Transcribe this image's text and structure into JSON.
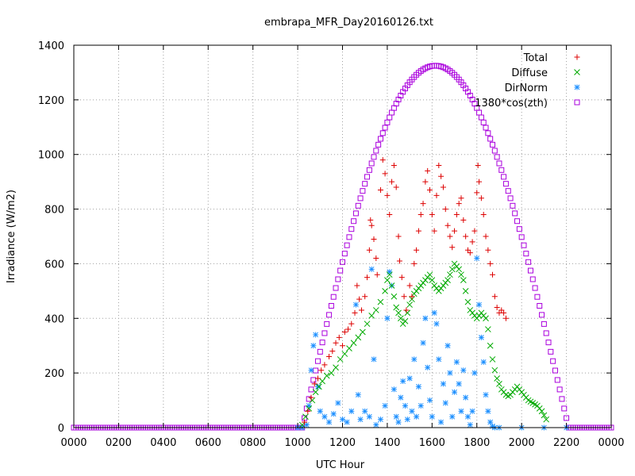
{
  "chart_data": {
    "type": "scatter",
    "title": "embrapa_MFR_Day20160126.txt",
    "xlabel": "UTC Hour",
    "ylabel": "Irradiance (W/m2)",
    "xlim": [
      0,
      24
    ],
    "ylim": [
      0,
      1400
    ],
    "x_ticks": [
      {
        "value": 0,
        "label": "0000"
      },
      {
        "value": 2,
        "label": "0200"
      },
      {
        "value": 4,
        "label": "0400"
      },
      {
        "value": 6,
        "label": "0600"
      },
      {
        "value": 8,
        "label": "0800"
      },
      {
        "value": 10,
        "label": "1000"
      },
      {
        "value": 12,
        "label": "1200"
      },
      {
        "value": 14,
        "label": "1400"
      },
      {
        "value": 16,
        "label": "1600"
      },
      {
        "value": 18,
        "label": "1800"
      },
      {
        "value": 20,
        "label": "2000"
      },
      {
        "value": 22,
        "label": "2200"
      },
      {
        "value": 24,
        "label": "0000"
      }
    ],
    "y_ticks": [
      {
        "value": 0,
        "label": "0"
      },
      {
        "value": 200,
        "label": "200"
      },
      {
        "value": 400,
        "label": "400"
      },
      {
        "value": 600,
        "label": "600"
      },
      {
        "value": 800,
        "label": "800"
      },
      {
        "value": 1000,
        "label": "1000"
      },
      {
        "value": 1200,
        "label": "1200"
      },
      {
        "value": 1400,
        "label": "1400"
      }
    ],
    "grid": true,
    "legend_position": "top-right",
    "series": [
      {
        "name": "Total",
        "marker": "plus",
        "color": "#dd0000",
        "points": [
          [
            10.3,
            20
          ],
          [
            10.45,
            60
          ],
          [
            10.6,
            110
          ],
          [
            10.75,
            160
          ],
          [
            10.9,
            180
          ],
          [
            11.05,
            210
          ],
          [
            11.2,
            230
          ],
          [
            11.4,
            260
          ],
          [
            11.55,
            280
          ],
          [
            11.7,
            310
          ],
          [
            11.85,
            330
          ],
          [
            12.0,
            300
          ],
          [
            12.1,
            350
          ],
          [
            12.25,
            360
          ],
          [
            12.4,
            380
          ],
          [
            12.55,
            420
          ],
          [
            12.65,
            520
          ],
          [
            12.75,
            470
          ],
          [
            12.85,
            430
          ],
          [
            13.0,
            480
          ],
          [
            13.1,
            550
          ],
          [
            13.2,
            650
          ],
          [
            13.25,
            760
          ],
          [
            13.3,
            740
          ],
          [
            13.4,
            690
          ],
          [
            13.5,
            620
          ],
          [
            13.55,
            560
          ],
          [
            13.7,
            870
          ],
          [
            13.8,
            980
          ],
          [
            13.9,
            930
          ],
          [
            14.0,
            850
          ],
          [
            14.1,
            780
          ],
          [
            14.2,
            900
          ],
          [
            14.3,
            960
          ],
          [
            14.4,
            880
          ],
          [
            14.5,
            700
          ],
          [
            14.55,
            610
          ],
          [
            14.65,
            550
          ],
          [
            14.75,
            480
          ],
          [
            14.85,
            430
          ],
          [
            15.0,
            520
          ],
          [
            15.1,
            480
          ],
          [
            15.2,
            600
          ],
          [
            15.3,
            650
          ],
          [
            15.4,
            720
          ],
          [
            15.5,
            780
          ],
          [
            15.6,
            820
          ],
          [
            15.7,
            900
          ],
          [
            15.8,
            940
          ],
          [
            15.9,
            870
          ],
          [
            16.0,
            780
          ],
          [
            16.1,
            720
          ],
          [
            16.2,
            850
          ],
          [
            16.3,
            960
          ],
          [
            16.4,
            920
          ],
          [
            16.5,
            880
          ],
          [
            16.6,
            800
          ],
          [
            16.7,
            740
          ],
          [
            16.8,
            700
          ],
          [
            16.9,
            660
          ],
          [
            17.0,
            720
          ],
          [
            17.1,
            780
          ],
          [
            17.2,
            820
          ],
          [
            17.3,
            840
          ],
          [
            17.4,
            760
          ],
          [
            17.5,
            700
          ],
          [
            17.6,
            650
          ],
          [
            17.7,
            640
          ],
          [
            17.8,
            680
          ],
          [
            17.9,
            720
          ],
          [
            18.0,
            860
          ],
          [
            18.05,
            960
          ],
          [
            18.1,
            900
          ],
          [
            18.2,
            840
          ],
          [
            18.3,
            780
          ],
          [
            18.4,
            700
          ],
          [
            18.5,
            650
          ],
          [
            18.6,
            600
          ],
          [
            18.7,
            560
          ],
          [
            18.8,
            480
          ],
          [
            18.9,
            440
          ],
          [
            19.0,
            420
          ],
          [
            19.1,
            430
          ],
          [
            19.2,
            420
          ],
          [
            19.3,
            400
          ]
        ]
      },
      {
        "name": "Diffuse",
        "marker": "cross",
        "color": "#00aa00",
        "points": [
          [
            10.2,
            10
          ],
          [
            10.35,
            40
          ],
          [
            10.5,
            70
          ],
          [
            10.65,
            100
          ],
          [
            10.8,
            130
          ],
          [
            10.95,
            150
          ],
          [
            11.1,
            170
          ],
          [
            11.3,
            190
          ],
          [
            11.5,
            200
          ],
          [
            11.7,
            220
          ],
          [
            11.9,
            250
          ],
          [
            12.1,
            270
          ],
          [
            12.3,
            290
          ],
          [
            12.5,
            310
          ],
          [
            12.7,
            330
          ],
          [
            12.9,
            350
          ],
          [
            13.1,
            380
          ],
          [
            13.3,
            410
          ],
          [
            13.5,
            430
          ],
          [
            13.7,
            460
          ],
          [
            13.9,
            500
          ],
          [
            14.0,
            540
          ],
          [
            14.1,
            560
          ],
          [
            14.2,
            520
          ],
          [
            14.3,
            480
          ],
          [
            14.4,
            440
          ],
          [
            14.5,
            420
          ],
          [
            14.6,
            400
          ],
          [
            14.7,
            380
          ],
          [
            14.8,
            390
          ],
          [
            14.9,
            420
          ],
          [
            15.0,
            450
          ],
          [
            15.1,
            470
          ],
          [
            15.2,
            490
          ],
          [
            15.3,
            500
          ],
          [
            15.4,
            510
          ],
          [
            15.5,
            520
          ],
          [
            15.6,
            530
          ],
          [
            15.7,
            540
          ],
          [
            15.8,
            550
          ],
          [
            15.9,
            560
          ],
          [
            16.0,
            540
          ],
          [
            16.1,
            520
          ],
          [
            16.2,
            510
          ],
          [
            16.3,
            500
          ],
          [
            16.4,
            510
          ],
          [
            16.5,
            520
          ],
          [
            16.6,
            530
          ],
          [
            16.7,
            540
          ],
          [
            16.8,
            560
          ],
          [
            16.9,
            580
          ],
          [
            17.0,
            600
          ],
          [
            17.1,
            590
          ],
          [
            17.2,
            580
          ],
          [
            17.3,
            560
          ],
          [
            17.4,
            540
          ],
          [
            17.5,
            500
          ],
          [
            17.6,
            460
          ],
          [
            17.7,
            430
          ],
          [
            17.8,
            420
          ],
          [
            17.9,
            410
          ],
          [
            18.0,
            400
          ],
          [
            18.1,
            410
          ],
          [
            18.2,
            420
          ],
          [
            18.3,
            410
          ],
          [
            18.4,
            400
          ],
          [
            18.5,
            360
          ],
          [
            18.6,
            300
          ],
          [
            18.7,
            250
          ],
          [
            18.8,
            210
          ],
          [
            18.9,
            180
          ],
          [
            19.0,
            160
          ],
          [
            19.1,
            140
          ],
          [
            19.2,
            130
          ],
          [
            19.3,
            120
          ],
          [
            19.4,
            115
          ],
          [
            19.5,
            120
          ],
          [
            19.6,
            130
          ],
          [
            19.7,
            140
          ],
          [
            19.8,
            150
          ],
          [
            19.9,
            140
          ],
          [
            20.0,
            130
          ],
          [
            20.1,
            120
          ],
          [
            20.2,
            110
          ],
          [
            20.3,
            100
          ],
          [
            20.4,
            95
          ],
          [
            20.5,
            90
          ],
          [
            20.6,
            85
          ],
          [
            20.7,
            80
          ],
          [
            20.8,
            70
          ],
          [
            20.9,
            60
          ],
          [
            21.0,
            45
          ],
          [
            21.1,
            30
          ]
        ]
      },
      {
        "name": "DirNorm",
        "marker": "star",
        "color": "#1e90ff",
        "points": [
          [
            10.0,
            0
          ],
          [
            10.2,
            0
          ],
          [
            10.4,
            10
          ],
          [
            10.5,
            80
          ],
          [
            10.6,
            210
          ],
          [
            10.7,
            300
          ],
          [
            10.8,
            340
          ],
          [
            10.9,
            150
          ],
          [
            11.0,
            60
          ],
          [
            11.2,
            40
          ],
          [
            11.4,
            20
          ],
          [
            11.6,
            50
          ],
          [
            11.8,
            90
          ],
          [
            12.0,
            30
          ],
          [
            12.2,
            20
          ],
          [
            12.4,
            60
          ],
          [
            12.6,
            450
          ],
          [
            12.7,
            120
          ],
          [
            12.8,
            30
          ],
          [
            13.0,
            60
          ],
          [
            13.2,
            40
          ],
          [
            13.3,
            580
          ],
          [
            13.4,
            250
          ],
          [
            13.5,
            10
          ],
          [
            13.7,
            30
          ],
          [
            13.9,
            80
          ],
          [
            14.0,
            400
          ],
          [
            14.1,
            570
          ],
          [
            14.2,
            520
          ],
          [
            14.3,
            140
          ],
          [
            14.4,
            40
          ],
          [
            14.5,
            20
          ],
          [
            14.6,
            110
          ],
          [
            14.7,
            170
          ],
          [
            14.8,
            80
          ],
          [
            14.9,
            30
          ],
          [
            15.0,
            180
          ],
          [
            15.1,
            60
          ],
          [
            15.2,
            250
          ],
          [
            15.3,
            40
          ],
          [
            15.4,
            150
          ],
          [
            15.5,
            80
          ],
          [
            15.6,
            310
          ],
          [
            15.7,
            400
          ],
          [
            15.8,
            220
          ],
          [
            15.9,
            100
          ],
          [
            16.0,
            40
          ],
          [
            16.1,
            420
          ],
          [
            16.2,
            380
          ],
          [
            16.3,
            250
          ],
          [
            16.4,
            20
          ],
          [
            16.5,
            160
          ],
          [
            16.6,
            90
          ],
          [
            16.7,
            300
          ],
          [
            16.8,
            200
          ],
          [
            16.9,
            40
          ],
          [
            17.0,
            130
          ],
          [
            17.1,
            240
          ],
          [
            17.2,
            160
          ],
          [
            17.3,
            60
          ],
          [
            17.4,
            210
          ],
          [
            17.5,
            110
          ],
          [
            17.6,
            40
          ],
          [
            17.7,
            10
          ],
          [
            17.8,
            60
          ],
          [
            17.9,
            200
          ],
          [
            18.0,
            620
          ],
          [
            18.1,
            450
          ],
          [
            18.2,
            330
          ],
          [
            18.3,
            240
          ],
          [
            18.4,
            120
          ],
          [
            18.5,
            60
          ],
          [
            18.6,
            20
          ],
          [
            18.7,
            5
          ],
          [
            18.8,
            0
          ],
          [
            19.0,
            0
          ],
          [
            20.0,
            0
          ],
          [
            21.0,
            0
          ],
          [
            22.0,
            0
          ]
        ]
      },
      {
        "name": "1380*cos(zth)",
        "marker": "square",
        "color": "#aa00dd",
        "curve": {
          "start": 10.2,
          "end": 22.1,
          "peak_x": 16.15,
          "peak_y": 1325,
          "baseline": 0
        }
      }
    ]
  }
}
